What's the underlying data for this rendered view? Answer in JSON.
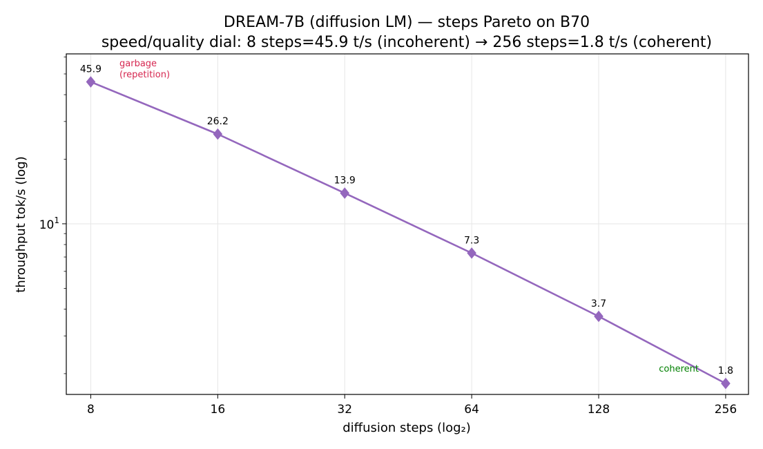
{
  "chart_data": {
    "type": "line",
    "title": "DREAM-7B (diffusion LM) — steps Pareto on B70",
    "subtitle": "speed/quality dial: 8 steps=45.9 t/s (incoherent) → 256 steps=1.8 t/s (coherent)",
    "xlabel": "diffusion steps (log₂)",
    "ylabel": "throughput tok/s (log)",
    "x_scale": "log2",
    "y_scale": "log10",
    "xlim": [
      7,
      290
    ],
    "ylim": [
      1.6,
      62
    ],
    "x": [
      8,
      16,
      32,
      64,
      128,
      256
    ],
    "x_tick_labels": [
      "8",
      "16",
      "32",
      "64",
      "128",
      "256"
    ],
    "y_tick_label": {
      "value": 10,
      "base": "10",
      "exponent": "1"
    },
    "grid": true,
    "legend": "none",
    "series": [
      {
        "values": [
          45.9,
          26.2,
          13.9,
          7.3,
          3.7,
          1.8
        ],
        "data_labels": [
          "45.9",
          "26.2",
          "13.9",
          "7.3",
          "3.7",
          "1.8"
        ],
        "color": "#9467bd",
        "marker": "diamond"
      }
    ],
    "annotations": [
      {
        "text": "garbage",
        "color": "#d62750"
      },
      {
        "text": "(repetition)",
        "color": "#d62750"
      },
      {
        "text": "coherent",
        "color": "#008000"
      }
    ]
  }
}
